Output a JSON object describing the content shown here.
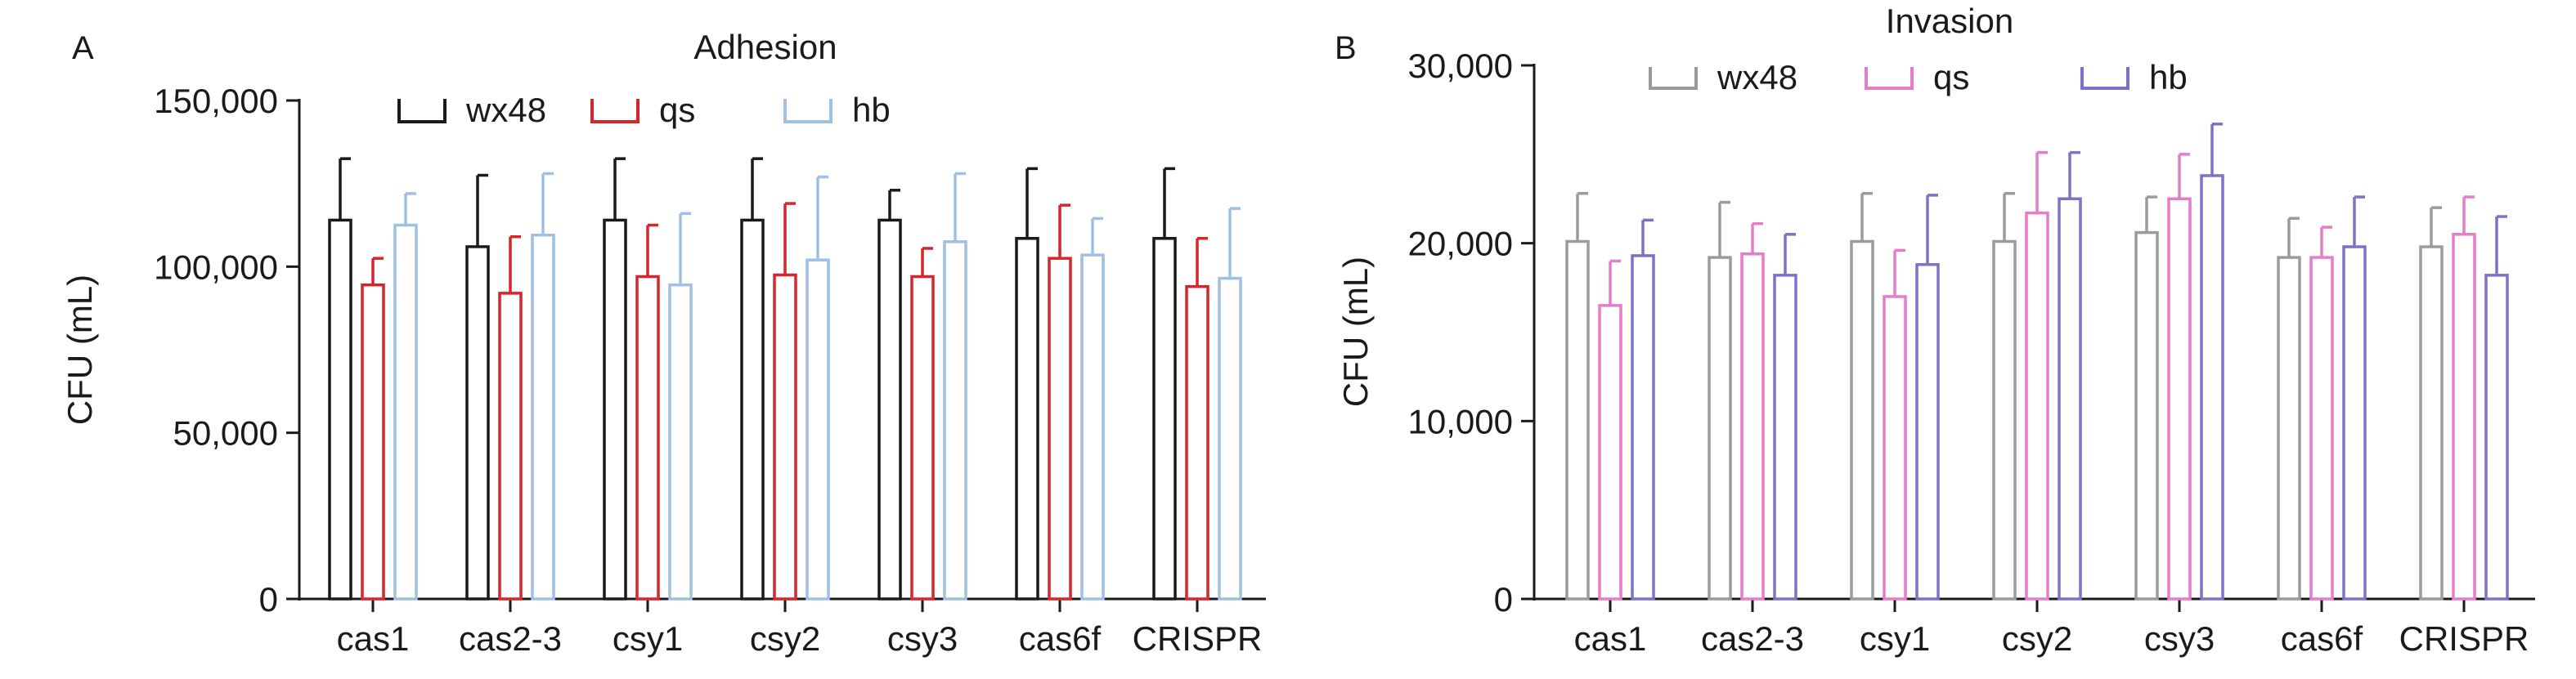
{
  "chart_data": [
    {
      "type": "bar",
      "panel": "A",
      "title": "Adhesion",
      "xlabel": "",
      "ylabel": "CFU (mL)",
      "ylim": [
        0,
        150000
      ],
      "yticks": [
        0,
        50000,
        100000,
        150000
      ],
      "ytick_labels": [
        "0",
        "50,000",
        "100,000",
        "150,000"
      ],
      "categories": [
        "cas1",
        "cas2-3",
        "csy1",
        "csy2",
        "csy3",
        "cas6f",
        "CRISPR"
      ],
      "legend_position": "top",
      "bar_style": "outlined",
      "series": [
        {
          "name": "wx48",
          "color": "#1a1a1a",
          "values": [
            114000,
            106000,
            114000,
            114000,
            114000,
            108500,
            108500
          ],
          "error": [
            18500,
            21500,
            18500,
            18500,
            9000,
            21000,
            21000
          ]
        },
        {
          "name": "qs",
          "color": "#d7262b",
          "values": [
            94500,
            92000,
            97000,
            97500,
            97000,
            102500,
            94000
          ],
          "error": [
            8000,
            17000,
            15500,
            21500,
            8500,
            16000,
            14500
          ]
        },
        {
          "name": "hb",
          "color": "#9fc0e3",
          "values": [
            112500,
            109500,
            94500,
            102000,
            107500,
            103500,
            96500
          ],
          "error": [
            9500,
            18500,
            21500,
            25000,
            20500,
            11000,
            21000
          ]
        }
      ]
    },
    {
      "type": "bar",
      "panel": "B",
      "title": "Invasion",
      "xlabel": "",
      "ylabel": "CFU (mL)",
      "ylim": [
        0,
        30000
      ],
      "yticks": [
        0,
        10000,
        20000,
        30000
      ],
      "ytick_labels": [
        "0",
        "10,000",
        "20,000",
        "30,000"
      ],
      "categories": [
        "cas1",
        "cas2-3",
        "csy1",
        "csy2",
        "csy3",
        "cas6f",
        "CRISPR"
      ],
      "legend_position": "top",
      "bar_style": "outlined",
      "series": [
        {
          "name": "wx48",
          "color": "#9b9b9b",
          "values": [
            20100,
            19200,
            20100,
            20100,
            20600,
            19200,
            19800
          ],
          "error": [
            2700,
            3100,
            2700,
            2700,
            2000,
            2200,
            2200
          ]
        },
        {
          "name": "qs",
          "color": "#e57dc9",
          "values": [
            16500,
            19400,
            17000,
            21700,
            22500,
            19200,
            20500
          ],
          "error": [
            2500,
            1700,
            2600,
            3400,
            2500,
            1700,
            2100
          ]
        },
        {
          "name": "hb",
          "color": "#7a73c6",
          "values": [
            19300,
            18200,
            18800,
            22500,
            23800,
            19800,
            18200
          ],
          "error": [
            2000,
            2300,
            3900,
            2600,
            2900,
            2800,
            3300
          ]
        }
      ]
    }
  ]
}
